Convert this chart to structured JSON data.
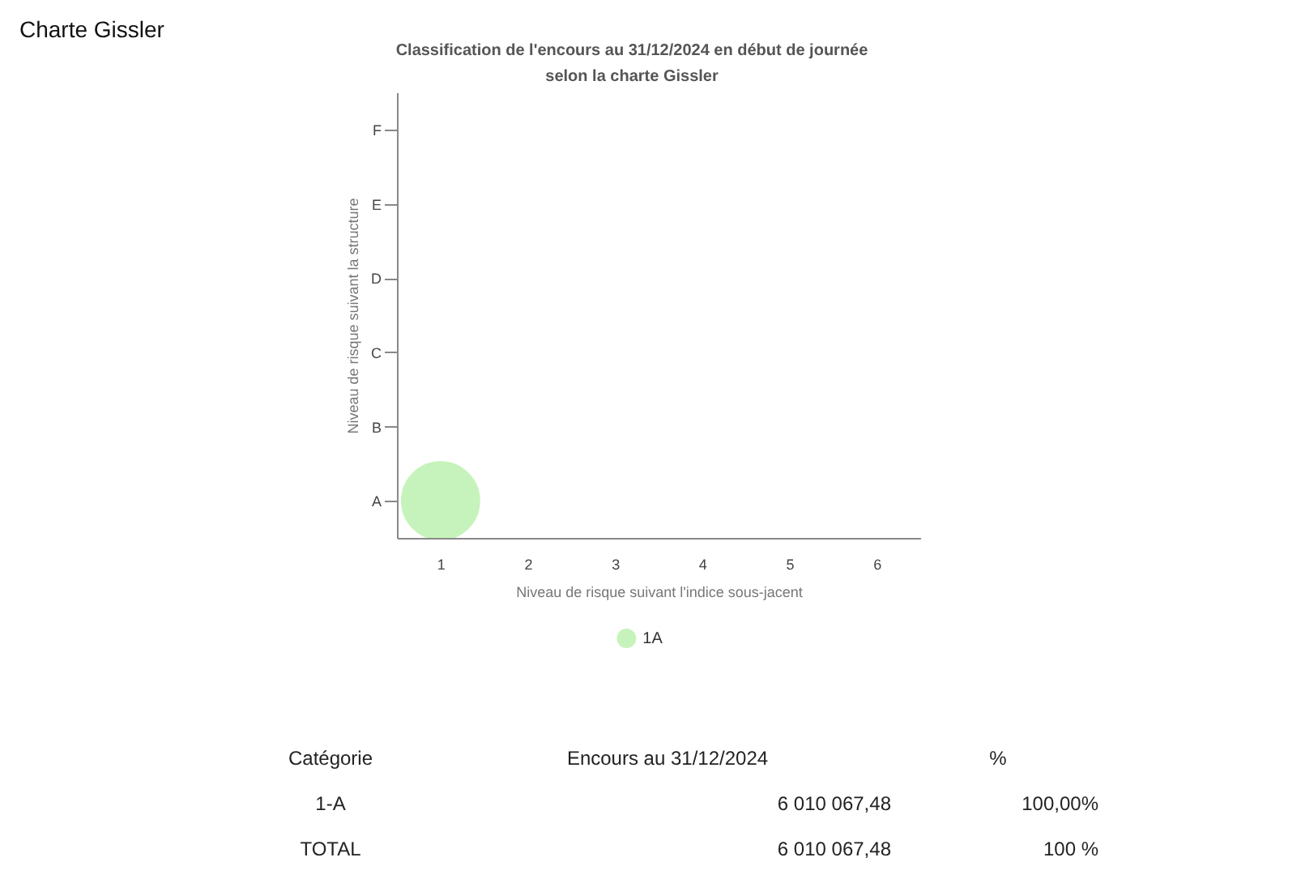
{
  "chart_data": {
    "type": "bubble",
    "title": "Classification de l'encours au 31/12/2024 en début de journée selon la charte Gissler",
    "xlabel": "Niveau de risque suivant l'indice sous-jacent",
    "ylabel": "Niveau de risque suivant la structure",
    "orientation": "horizontal",
    "categories": [
      "F",
      "E",
      "D",
      "C",
      "B",
      "A"
    ],
    "xlim": [
      0.5,
      6.5
    ],
    "xticks": [
      1,
      2,
      3,
      4,
      5,
      6
    ],
    "series": [
      {
        "name": "1A",
        "color": "#c6f3bb",
        "values": [
          null,
          null,
          null,
          null,
          null,
          1
        ],
        "sizes": [
          null,
          null,
          null,
          null,
          null,
          1
        ]
      }
    ],
    "legend": "bottom",
    "annotations": [
      "Charte Gissler",
      "Catégorie",
      "Encours au 31/12/2024",
      "%",
      "1-A",
      "6 010 067,48",
      "100,00%",
      "TOTAL",
      "6 010 067,48",
      "100 %"
    ]
  }
}
